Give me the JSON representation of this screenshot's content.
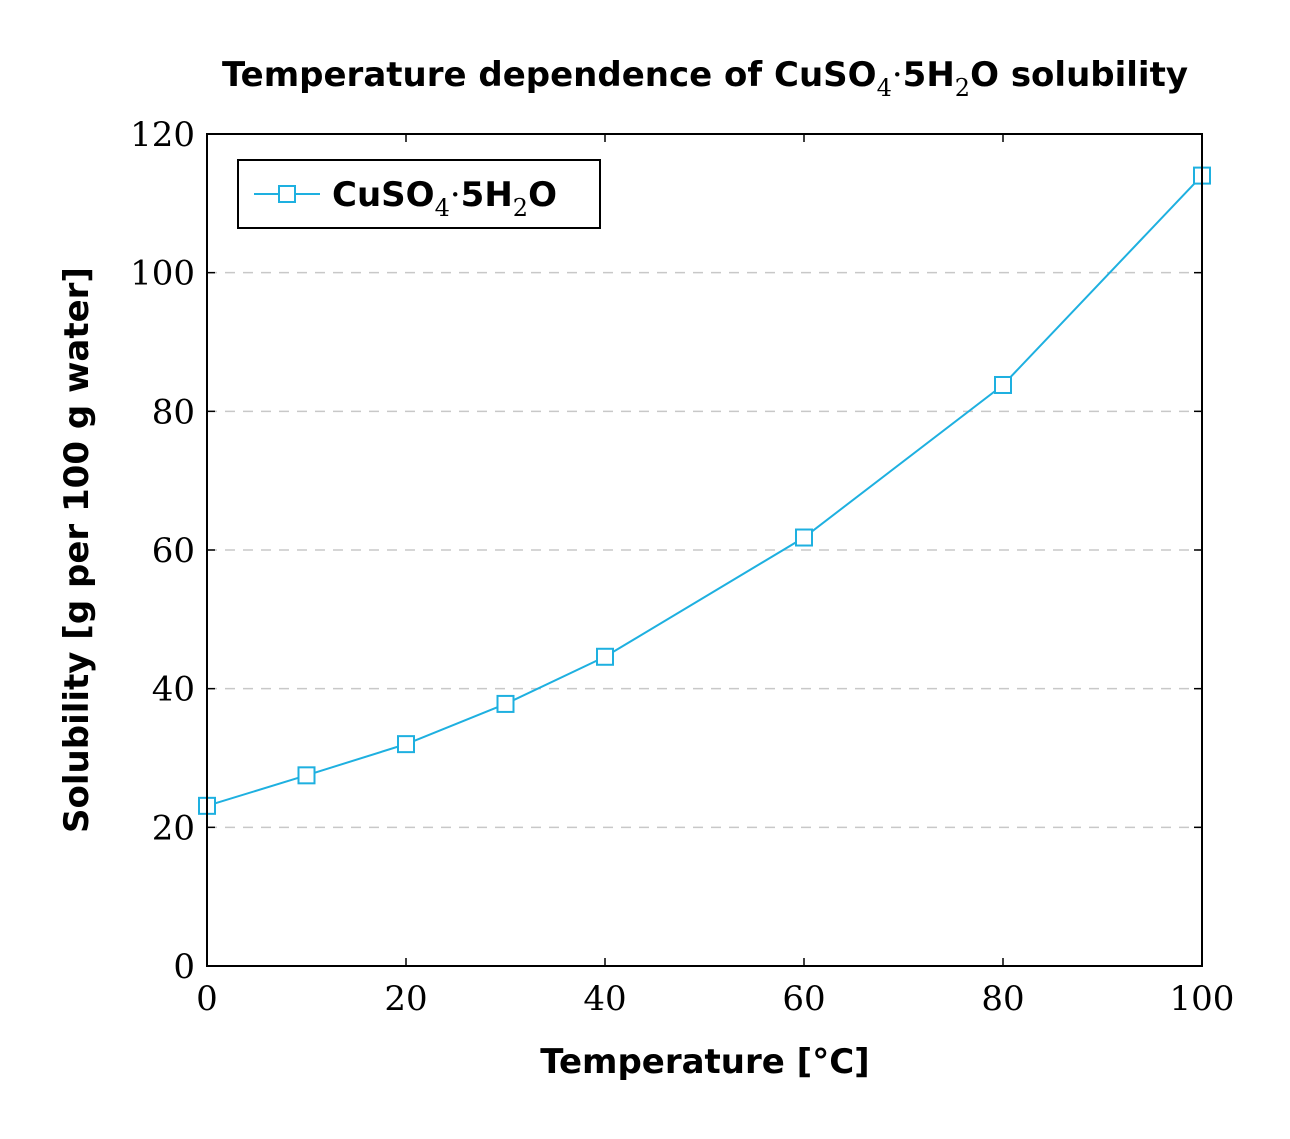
{
  "chart_data": {
    "type": "line",
    "title": {
      "prefix": "Temperature dependence of CuSO",
      "sub1": "4",
      "dot": "·",
      "mid": "5H",
      "sub2": "2",
      "suffix": "O solubility"
    },
    "xlabel": "Temperature [°C]",
    "ylabel": "Solubility [g per 100 g water]",
    "xlim": [
      0,
      100
    ],
    "ylim": [
      0,
      120
    ],
    "xticks": [
      0,
      20,
      40,
      60,
      80,
      100
    ],
    "yticks": [
      0,
      20,
      40,
      60,
      80,
      100,
      120
    ],
    "grid": "horizontal-dashed",
    "legend_position": "top-left",
    "series": [
      {
        "name": {
          "prefix": "CuSO",
          "sub1": "4",
          "dot": "·",
          "mid": "5H",
          "sub2": "2",
          "suffix": "O"
        },
        "color": "#1eb0e0",
        "marker": "square",
        "x": [
          0,
          10,
          20,
          30,
          40,
          60,
          80,
          100
        ],
        "y": [
          23.1,
          27.5,
          32.0,
          37.8,
          44.6,
          61.8,
          83.8,
          114.0
        ]
      }
    ]
  }
}
